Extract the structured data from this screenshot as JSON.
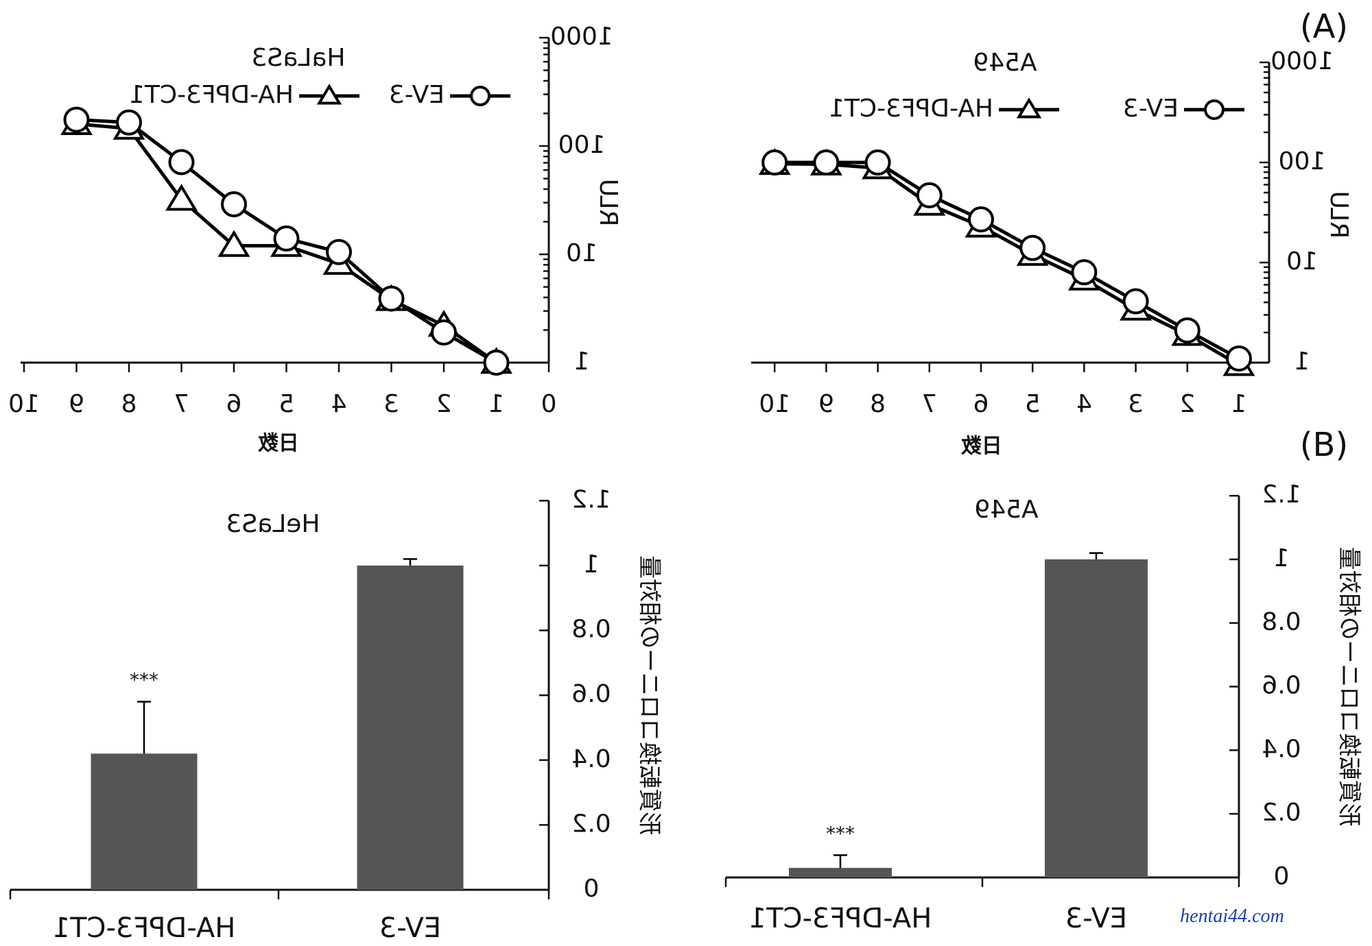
{
  "panel_labels": [
    "(A)",
    "(B)"
  ],
  "axis_titles": {
    "line_y": "RLU",
    "line_x": "日数",
    "bar_y": "形質転換コロニーの相対量"
  },
  "watermark": "hentai44.com",
  "colors": {
    "bar": "#555555",
    "axis": "#111111"
  },
  "chart_data": [
    {
      "id": "A-left",
      "type": "line",
      "title": "HaLaS3",
      "xlabel": "日数",
      "ylabel": "RLU",
      "yscale": "log",
      "xlim": [
        0,
        10
      ],
      "ylim": [
        1,
        1000
      ],
      "x_ticks": [
        "0",
        "1",
        "2",
        "3",
        "4",
        "5",
        "6",
        "7",
        "8",
        "9",
        "10"
      ],
      "y_ticks": [
        "1",
        "10",
        "100",
        "1000"
      ],
      "legend": "top-center",
      "series": [
        {
          "name": "EV-3",
          "marker": "circle",
          "x": [
            1,
            2,
            3,
            4,
            5,
            6,
            7,
            8,
            9
          ],
          "y": [
            1.0,
            1.9,
            3.9,
            10.5,
            14,
            29,
            71,
            165,
            175
          ]
        },
        {
          "name": "HA-DPF3-CT1",
          "marker": "triangle",
          "x": [
            1,
            2,
            3,
            4,
            5,
            6,
            7,
            8,
            9
          ],
          "y": [
            1.0,
            2.2,
            3.8,
            8.2,
            12,
            12,
            32,
            145,
            160
          ]
        }
      ]
    },
    {
      "id": "A-right",
      "type": "line",
      "title": "A549",
      "xlabel": "日数",
      "ylabel": "RLU",
      "yscale": "log",
      "xlim": [
        1,
        10
      ],
      "ylim": [
        1,
        1000
      ],
      "x_ticks": [
        "1",
        "2",
        "3",
        "4",
        "5",
        "6",
        "7",
        "8",
        "9",
        "10"
      ],
      "y_ticks": [
        "1",
        "10",
        "100",
        "1000"
      ],
      "legend": "top-center",
      "series": [
        {
          "name": "EV-3",
          "marker": "circle",
          "x": [
            1,
            2,
            3,
            4,
            5,
            6,
            7,
            8,
            9,
            10
          ],
          "y": [
            1.1,
            2.1,
            4.1,
            8.0,
            14,
            27,
            47,
            100,
            100,
            100
          ]
        },
        {
          "name": "HA-DPF3-CT1",
          "marker": "triangle",
          "x": [
            1,
            2,
            3,
            4,
            5,
            6,
            7,
            8,
            9,
            10
          ],
          "y": [
            0.95,
            1.9,
            3.4,
            6.8,
            12,
            23,
            38,
            88,
            96,
            97
          ]
        }
      ]
    },
    {
      "id": "B-left",
      "type": "bar",
      "title": "HeLaS3",
      "categories": [
        "EV-3",
        "HA-DPF3-CT1"
      ],
      "values": [
        1.0,
        0.42
      ],
      "errors": [
        0.02,
        0.16
      ],
      "significance": [
        "",
        "***"
      ],
      "ylim": [
        0,
        1.2
      ],
      "y_ticks": [
        "0",
        "0.2",
        "0.4",
        "0.6",
        "0.8",
        "1",
        "1.2"
      ],
      "ylabel": "形質転換コロニーの相対量"
    },
    {
      "id": "B-right",
      "type": "bar",
      "title": "A549",
      "categories": [
        "EV-3",
        "HA-DPF3-CT1"
      ],
      "values": [
        1.0,
        0.03
      ],
      "errors": [
        0.02,
        0.04
      ],
      "significance": [
        "",
        "***"
      ],
      "ylim": [
        0,
        1.2
      ],
      "y_ticks": [
        "0",
        "0.2",
        "0.4",
        "0.6",
        "0.8",
        "1",
        "1.2"
      ],
      "ylabel": "形質転換コロニーの相対量"
    }
  ]
}
